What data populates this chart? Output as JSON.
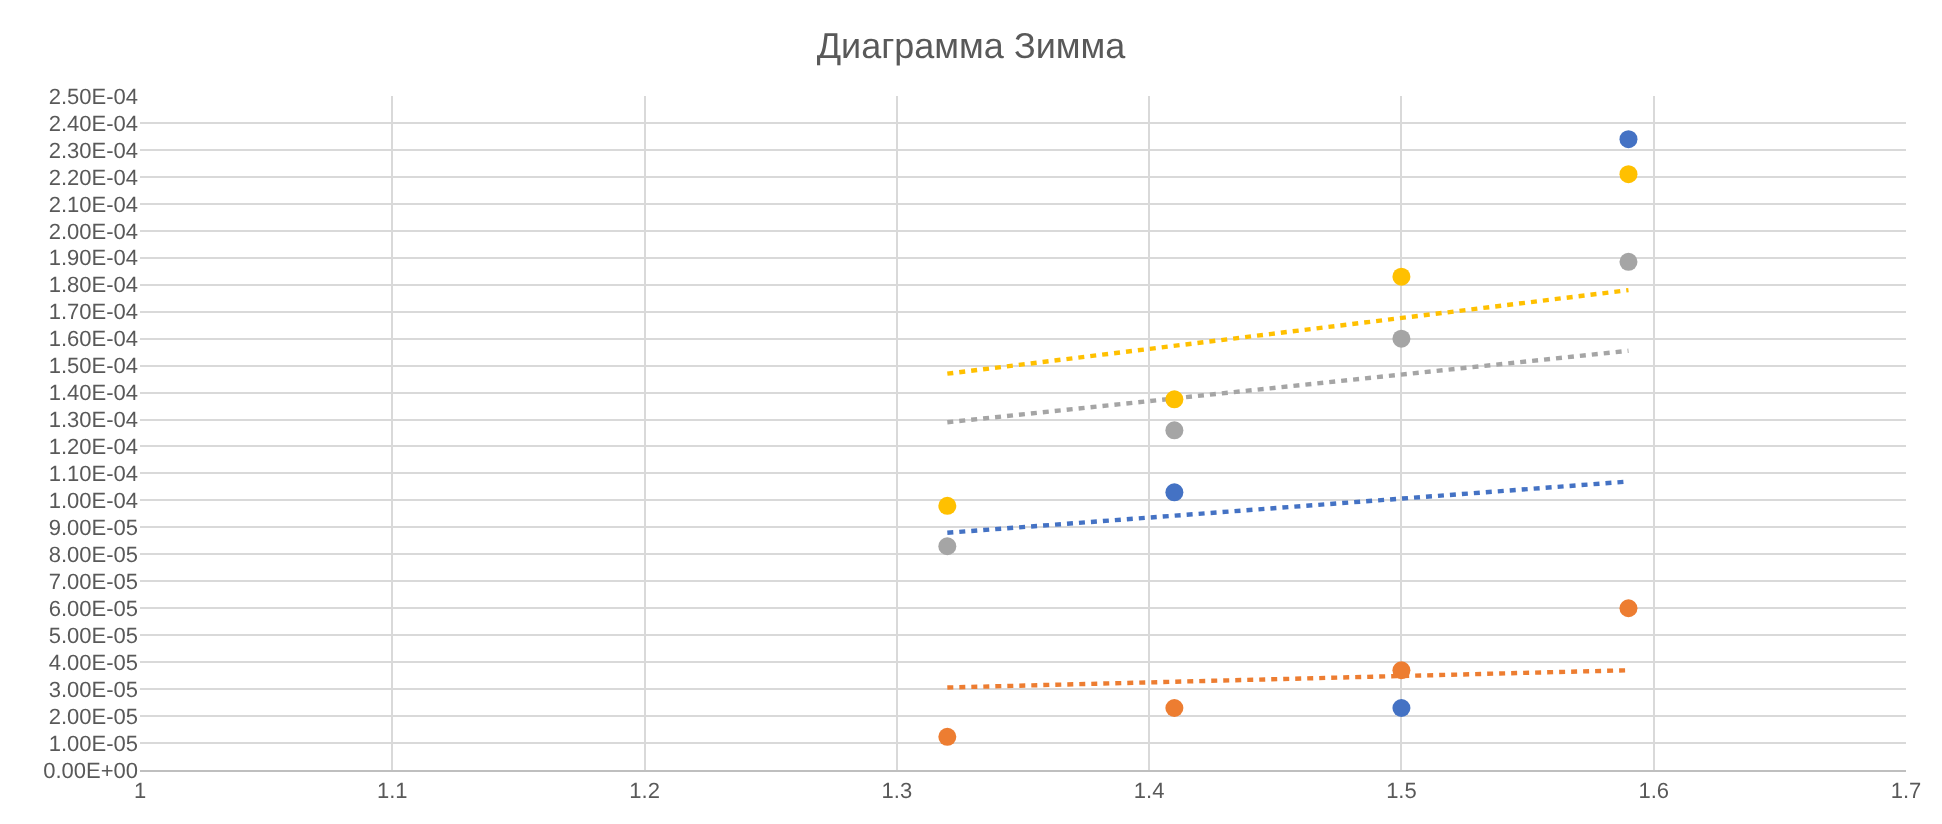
{
  "chart_data": {
    "type": "scatter",
    "title": "Диаграмма Зимма",
    "marker": "circle",
    "grid": true,
    "xlim": [
      1,
      1.7
    ],
    "xticks": [
      1,
      1.1,
      1.2,
      1.3,
      1.4,
      1.5,
      1.6,
      1.7
    ],
    "ylim": [
      0,
      0.00025
    ],
    "yticks": [
      {
        "value": 0,
        "label": "0.00E+00"
      },
      {
        "value": 1e-05,
        "label": "1.00E-05"
      },
      {
        "value": 2e-05,
        "label": "2.00E-05"
      },
      {
        "value": 3e-05,
        "label": "3.00E-05"
      },
      {
        "value": 4e-05,
        "label": "4.00E-05"
      },
      {
        "value": 5e-05,
        "label": "5.00E-05"
      },
      {
        "value": 6e-05,
        "label": "6.00E-05"
      },
      {
        "value": 7e-05,
        "label": "7.00E-05"
      },
      {
        "value": 8e-05,
        "label": "8.00E-05"
      },
      {
        "value": 9e-05,
        "label": "9.00E-05"
      },
      {
        "value": 0.0001,
        "label": "1.00E-04"
      },
      {
        "value": 0.00011,
        "label": "1.10E-04"
      },
      {
        "value": 0.00012,
        "label": "1.20E-04"
      },
      {
        "value": 0.00013,
        "label": "1.30E-04"
      },
      {
        "value": 0.00014,
        "label": "1.40E-04"
      },
      {
        "value": 0.00015,
        "label": "1.50E-04"
      },
      {
        "value": 0.00016,
        "label": "1.60E-04"
      },
      {
        "value": 0.00017,
        "label": "1.70E-04"
      },
      {
        "value": 0.00018,
        "label": "1.80E-04"
      },
      {
        "value": 0.00019,
        "label": "1.90E-04"
      },
      {
        "value": 0.0002,
        "label": "2.00E-04"
      },
      {
        "value": 0.00021,
        "label": "2.10E-04"
      },
      {
        "value": 0.00022,
        "label": "2.20E-04"
      },
      {
        "value": 0.00023,
        "label": "2.30E-04"
      },
      {
        "value": 0.00024,
        "label": "2.40E-04"
      },
      {
        "value": 0.00025,
        "label": "2.50E-04"
      }
    ],
    "series": [
      {
        "type": "line",
        "line_style": "dotted",
        "marker": "none",
        "color": "#ffc000",
        "x": [
          1.32,
          1.59
        ],
        "values": [
          0.000147,
          0.000178
        ]
      },
      {
        "type": "line",
        "line_style": "dotted",
        "marker": "none",
        "color": "#a5a5a5",
        "x": [
          1.32,
          1.59
        ],
        "values": [
          0.000129,
          0.0001555
        ]
      },
      {
        "type": "line",
        "line_style": "dotted",
        "marker": "none",
        "color": "#4472c4",
        "x": [
          1.32,
          1.59
        ],
        "values": [
          8.8e-05,
          0.000107
        ]
      },
      {
        "type": "line",
        "line_style": "dotted",
        "marker": "none",
        "color": "#ed7d31",
        "x": [
          1.32,
          1.59
        ],
        "values": [
          3.06e-05,
          3.7e-05
        ]
      },
      {
        "color": "#4472c4",
        "x": [
          1.41,
          1.5,
          1.59
        ],
        "values": [
          0.000103,
          2.3e-05,
          0.000234
        ]
      },
      {
        "color": "#ed7d31",
        "x": [
          1.32,
          1.41,
          1.5,
          1.59
        ],
        "values": [
          1.23e-05,
          2.3e-05,
          3.7e-05,
          6e-05
        ]
      },
      {
        "color": "#a5a5a5",
        "x": [
          1.32,
          1.41,
          1.5,
          1.59
        ],
        "values": [
          8.3e-05,
          0.000126,
          0.00016,
          0.0001885
        ]
      },
      {
        "color": "#ffc000",
        "x": [
          1.32,
          1.41,
          1.5,
          1.59
        ],
        "values": [
          9.8e-05,
          0.0001375,
          0.000183,
          0.000221
        ]
      }
    ]
  }
}
